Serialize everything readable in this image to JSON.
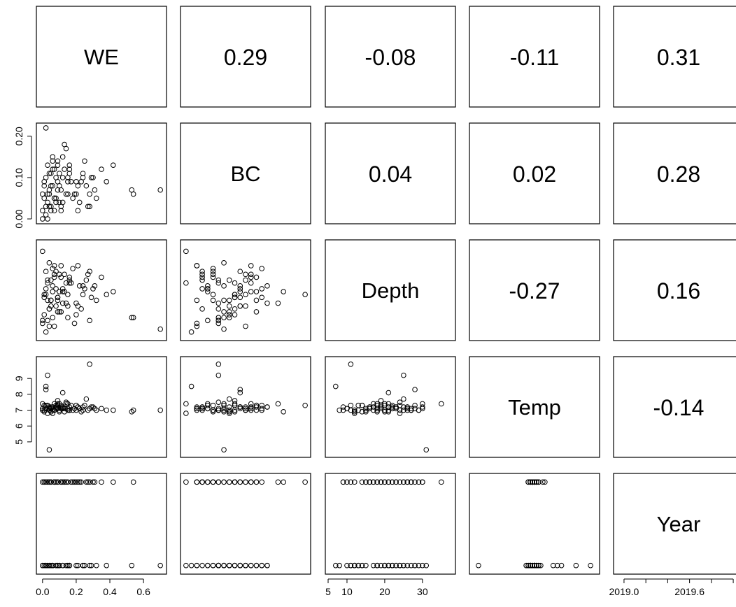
{
  "chart_data": {
    "type": "scatter",
    "variables": [
      "WE",
      "BC",
      "Depth",
      "Temp",
      "Year"
    ],
    "correlations": [
      [
        "WE",
        "BC",
        "0.29"
      ],
      [
        "WE",
        "Depth",
        "-0.08"
      ],
      [
        "WE",
        "Temp",
        "-0.11"
      ],
      [
        "WE",
        "Year",
        "0.31"
      ],
      [
        "BC",
        "Depth",
        "0.04"
      ],
      [
        "BC",
        "Temp",
        "0.02"
      ],
      [
        "BC",
        "Year",
        "0.28"
      ],
      [
        "Depth",
        "Temp",
        "-0.27"
      ],
      [
        "Depth",
        "Year",
        "0.16"
      ],
      [
        "Temp",
        "Year",
        "-0.14"
      ]
    ],
    "axis_ranges": {
      "WE": [
        -0.02,
        0.72
      ],
      "BC": [
        -0.005,
        0.225
      ],
      "Depth": [
        5,
        38
      ],
      "Temp": [
        4.2,
        10.2
      ],
      "Year": [
        2018.93,
        2020.07
      ]
    },
    "ticks": {
      "x_bottom": {
        "WE": [
          {
            "v": 0.0,
            "label": "0.0"
          },
          {
            "v": 0.2,
            "label": "0.2"
          },
          {
            "v": 0.4,
            "label": "0.4"
          },
          {
            "v": 0.6,
            "label": "0.6"
          }
        ],
        "Depth": [
          {
            "v": 5,
            "label": "5"
          },
          {
            "v": 10,
            "label": "10"
          },
          {
            "v": 20,
            "label": "20"
          },
          {
            "v": 30,
            "label": "30"
          }
        ],
        "Year": [
          {
            "v": 2019.0,
            "label": "2019.0"
          },
          {
            "v": 2019.2,
            "label": ""
          },
          {
            "v": 2019.4,
            "label": ""
          },
          {
            "v": 2019.6,
            "label": "2019.6"
          },
          {
            "v": 2019.8,
            "label": ""
          },
          {
            "v": 2020.0,
            "label": ""
          }
        ]
      },
      "y_left": {
        "BC": [
          {
            "v": 0.0,
            "label": "0.00"
          },
          {
            "v": 0.1,
            "label": "0.10"
          },
          {
            "v": 0.2,
            "label": "0.20"
          }
        ],
        "Temp": [
          {
            "v": 5,
            "label": "5"
          },
          {
            "v": 6,
            "label": "6"
          },
          {
            "v": 7,
            "label": "7"
          },
          {
            "v": 8,
            "label": "8"
          },
          {
            "v": 9,
            "label": "9"
          }
        ]
      }
    },
    "points": {
      "WE": [
        0.0,
        0.01,
        0.02,
        0.03,
        0.04,
        0.05,
        0.06,
        0.07,
        0.08,
        0.09,
        0.1,
        0.11,
        0.12,
        0.13,
        0.14,
        0.15,
        0.16,
        0.18,
        0.2,
        0.22,
        0.24,
        0.26,
        0.28,
        0.3,
        0.32,
        0.35,
        0.38,
        0.42,
        0.53,
        0.54,
        0.7,
        0.0,
        0.02,
        0.03,
        0.04,
        0.05,
        0.06,
        0.07,
        0.08,
        0.09,
        0.1,
        0.11,
        0.12,
        0.14,
        0.16,
        0.19,
        0.21,
        0.23,
        0.25,
        0.27,
        0.29,
        0.31,
        0.01,
        0.02,
        0.03,
        0.05,
        0.06,
        0.08,
        0.1,
        0.13,
        0.15,
        0.17,
        0.02,
        0.04,
        0.05,
        0.07,
        0.09,
        0.11,
        0.15,
        0.2,
        0.24,
        0.28,
        0.0,
        0.01,
        0.03,
        0.04,
        0.06,
        0.07,
        0.09,
        0.12,
        0.16,
        0.21
      ],
      "BC": [
        0.02,
        0.05,
        0.1,
        0.13,
        0.06,
        0.03,
        0.08,
        0.12,
        0.04,
        0.09,
        0.11,
        0.07,
        0.15,
        0.18,
        0.06,
        0.1,
        0.13,
        0.05,
        0.09,
        0.04,
        0.11,
        0.08,
        0.06,
        0.1,
        0.05,
        0.12,
        0.09,
        0.13,
        0.07,
        0.06,
        0.07,
        0.0,
        0.01,
        0.04,
        0.07,
        0.11,
        0.15,
        0.02,
        0.05,
        0.14,
        0.08,
        0.03,
        0.1,
        0.17,
        0.12,
        0.06,
        0.02,
        0.09,
        0.14,
        0.03,
        0.1,
        0.07,
        0.08,
        0.22,
        0.06,
        0.02,
        0.14,
        0.1,
        0.04,
        0.12,
        0.06,
        0.09,
        0.03,
        0.11,
        0.08,
        0.05,
        0.13,
        0.02,
        0.09,
        0.06,
        0.1,
        0.03,
        0.06,
        0.09,
        0.0,
        0.03,
        0.12,
        0.05,
        0.07,
        0.04,
        0.11,
        0.08
      ],
      "Depth": [
        10,
        20,
        28,
        18,
        15,
        25,
        12,
        30,
        22,
        19,
        27,
        14,
        17,
        21,
        24,
        16,
        26,
        29,
        13,
        23,
        20,
        25,
        11,
        22,
        18,
        26,
        20,
        21,
        12,
        12,
        8,
        35,
        7,
        11,
        31,
        16,
        23,
        9,
        28,
        19,
        14,
        26,
        21,
        17,
        24,
        10,
        30,
        15,
        22,
        27,
        19,
        23,
        13,
        20,
        25,
        18,
        29,
        16,
        21,
        27,
        12,
        24,
        22,
        9,
        18,
        26,
        14,
        30,
        20,
        17,
        23,
        28,
        11,
        19,
        24,
        15,
        21,
        27,
        18,
        22,
        25,
        16
      ],
      "Temp": [
        7.1,
        6.9,
        8.3,
        7.3,
        7.0,
        7.2,
        6.8,
        7.4,
        7.1,
        7.6,
        7.0,
        7.3,
        7.2,
        6.9,
        7.5,
        7.1,
        7.2,
        7.0,
        7.3,
        7.1,
        7.0,
        7.7,
        9.9,
        7.2,
        7.0,
        7.1,
        7.0,
        7.0,
        6.9,
        7.0,
        7.0,
        7.4,
        8.5,
        7.3,
        4.5,
        7.1,
        7.2,
        7.0,
        7.3,
        7.1,
        6.9,
        7.2,
        8.1,
        7.4,
        7.0,
        7.1,
        7.2,
        6.9,
        7.3,
        7.0,
        7.2,
        7.1,
        7.0,
        7.3,
        9.2,
        7.1,
        7.0,
        7.2,
        7.4,
        7.1,
        7.0,
        7.3,
        7.1,
        7.2,
        6.9,
        7.0,
        7.3,
        7.1,
        7.4,
        7.0,
        7.2,
        7.1,
        7.0,
        7.3,
        6.8,
        7.1,
        7.2,
        7.0,
        7.4,
        7.1,
        7.0,
        7.2
      ],
      "Year": [
        2019,
        2020,
        2019,
        2020,
        2019,
        2020,
        2019,
        2020,
        2019,
        2020,
        2019,
        2020,
        2019,
        2020,
        2019,
        2020,
        2019,
        2020,
        2019,
        2020,
        2019,
        2020,
        2019,
        2020,
        2019,
        2020,
        2019,
        2020,
        2019,
        2020,
        2019,
        2020,
        2019,
        2020,
        2019,
        2020,
        2019,
        2020,
        2019,
        2020,
        2019,
        2020,
        2019,
        2020,
        2019,
        2020,
        2019,
        2020,
        2019,
        2020,
        2019,
        2020,
        2019,
        2020,
        2019,
        2020,
        2019,
        2020,
        2019,
        2020,
        2019,
        2020,
        2019,
        2020,
        2019,
        2020,
        2019,
        2020,
        2019,
        2020,
        2019,
        2020,
        2019,
        2020,
        2019,
        2020,
        2019,
        2020,
        2019,
        2020,
        2019,
        2020
      ]
    }
  }
}
